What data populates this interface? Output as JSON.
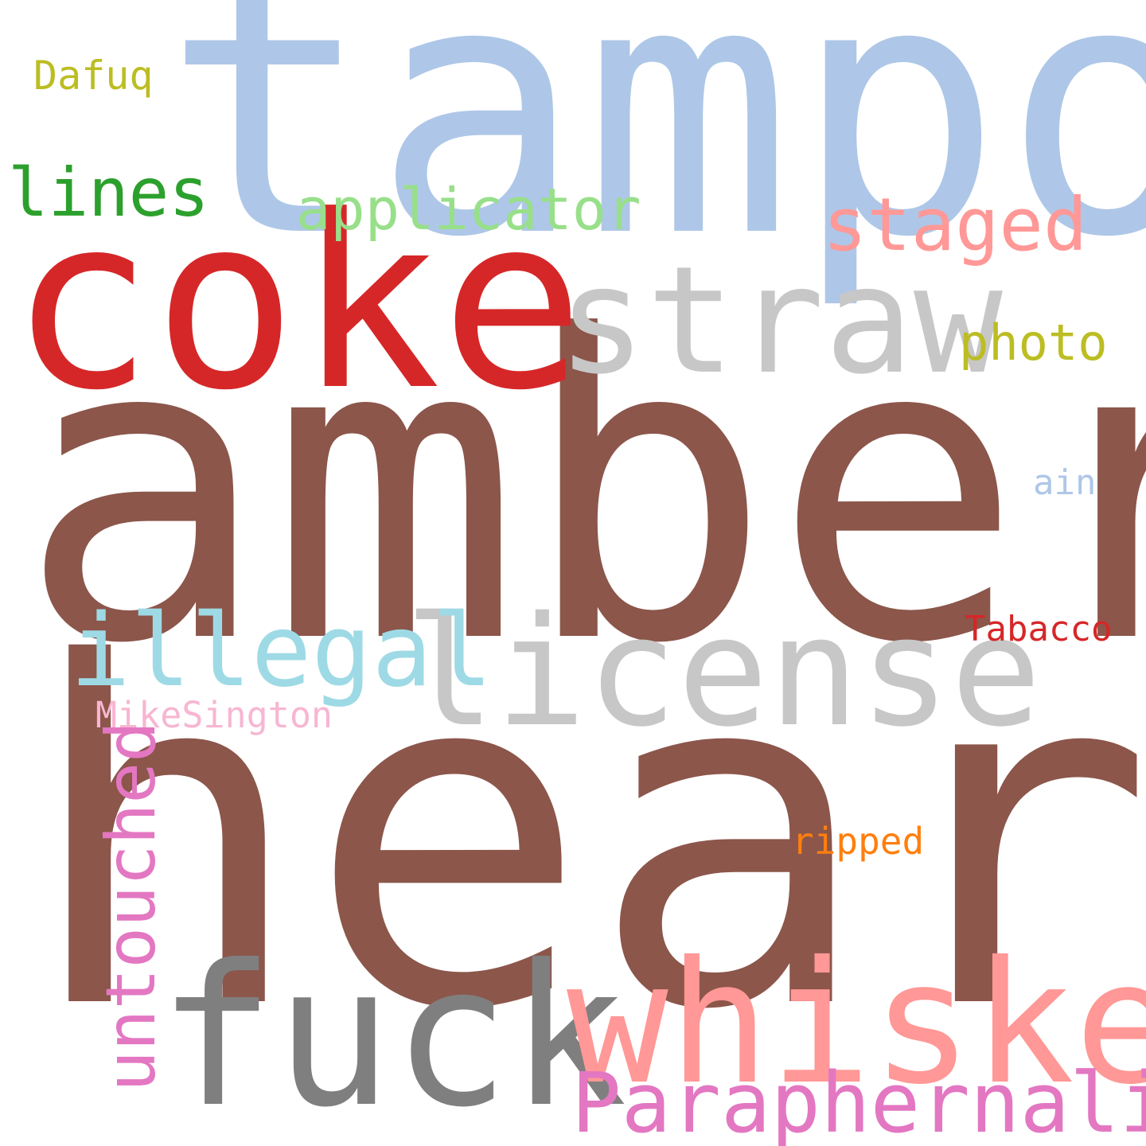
{
  "words": {
    "heard": {
      "text": "heard",
      "color": "#8c564b"
    },
    "amber": {
      "text": "amber",
      "color": "#8c564b"
    },
    "tampon": {
      "text": "tampon",
      "color": "#aec7e8"
    },
    "coke": {
      "text": "coke",
      "color": "#d62728"
    },
    "straw": {
      "text": "straw",
      "color": "#c7c7c7"
    },
    "license": {
      "text": "license",
      "color": "#c7c7c7"
    },
    "fuck": {
      "text": "fuck",
      "color": "#7f7f7f"
    },
    "whiskey": {
      "text": "whiskey",
      "color": "#ff9896"
    },
    "illegal": {
      "text": "illegal",
      "color": "#9edae5"
    },
    "paraphernalia": {
      "text": "Paraphernalia",
      "color": "#e377c2"
    },
    "staged": {
      "text": "staged",
      "color": "#ff9896"
    },
    "applicator": {
      "text": "applicator",
      "color": "#98df8a"
    },
    "lines": {
      "text": "lines",
      "color": "#2ca02c"
    },
    "photo": {
      "text": "photo",
      "color": "#bcbd22"
    },
    "dafuq": {
      "text": "Dafuq",
      "color": "#bcbd22"
    },
    "ain": {
      "text": "ain",
      "color": "#aec7e8"
    },
    "tabacco": {
      "text": "Tabacco",
      "color": "#d62728"
    },
    "mikesington": {
      "text": "MikeSington",
      "color": "#f7b6d2"
    },
    "ripped": {
      "text": "ripped",
      "color": "#ff7f0e"
    },
    "untouched": {
      "text": "untouched",
      "color": "#e377c2"
    }
  }
}
